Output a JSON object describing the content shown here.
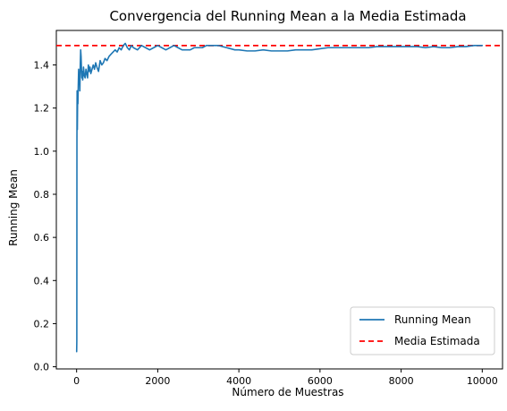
{
  "chart_data": {
    "type": "line",
    "title": "Convergencia del Running Mean a la Media Estimada",
    "xlabel": "Número de Muestras",
    "ylabel": "Running Mean",
    "xlim": [
      -500,
      10500
    ],
    "ylim": [
      -0.01,
      1.56
    ],
    "xticks": [
      0,
      2000,
      4000,
      6000,
      8000,
      10000
    ],
    "yticks": [
      0.0,
      0.2,
      0.4,
      0.6,
      0.8,
      1.0,
      1.2,
      1.4
    ],
    "xtick_labels": [
      "0",
      "2000",
      "4000",
      "6000",
      "8000",
      "10000"
    ],
    "ytick_labels": [
      "0.0",
      "0.2",
      "0.4",
      "0.6",
      "0.8",
      "1.0",
      "1.2",
      "1.4"
    ],
    "grid": false,
    "legend_position": "lower-right",
    "series": [
      {
        "name": "Running Mean",
        "color": "#1f77b4",
        "style": "solid",
        "x": [
          1,
          5,
          8,
          12,
          18,
          25,
          32,
          40,
          50,
          60,
          70,
          80,
          90,
          100,
          110,
          120,
          130,
          140,
          150,
          170,
          190,
          210,
          230,
          250,
          270,
          290,
          310,
          330,
          350,
          380,
          410,
          440,
          470,
          500,
          540,
          580,
          620,
          660,
          700,
          750,
          800,
          850,
          900,
          950,
          1000,
          1050,
          1100,
          1150,
          1200,
          1250,
          1300,
          1350,
          1400,
          1500,
          1600,
          1700,
          1800,
          1900,
          2000,
          2100,
          2200,
          2300,
          2400,
          2500,
          2600,
          2700,
          2800,
          2900,
          3000,
          3100,
          3200,
          3300,
          3400,
          3500,
          3600,
          3700,
          3800,
          3900,
          4000,
          4200,
          4400,
          4600,
          4800,
          5000,
          5200,
          5400,
          5600,
          5800,
          6000,
          6200,
          6400,
          6600,
          6800,
          7000,
          7200,
          7400,
          7600,
          7800,
          8000,
          8200,
          8400,
          8600,
          8800,
          9000,
          9200,
          9400,
          9600,
          9800,
          10000
        ],
        "values": [
          0.07,
          0.12,
          1.05,
          1.28,
          1.1,
          1.25,
          1.22,
          1.3,
          1.38,
          1.32,
          1.36,
          1.28,
          1.4,
          1.47,
          1.44,
          1.38,
          1.34,
          1.37,
          1.33,
          1.39,
          1.35,
          1.34,
          1.38,
          1.36,
          1.34,
          1.4,
          1.37,
          1.39,
          1.36,
          1.38,
          1.4,
          1.38,
          1.41,
          1.39,
          1.37,
          1.42,
          1.4,
          1.41,
          1.43,
          1.42,
          1.44,
          1.45,
          1.46,
          1.47,
          1.46,
          1.48,
          1.47,
          1.49,
          1.5,
          1.48,
          1.47,
          1.49,
          1.48,
          1.47,
          1.49,
          1.48,
          1.47,
          1.48,
          1.49,
          1.48,
          1.47,
          1.48,
          1.49,
          1.48,
          1.47,
          1.47,
          1.47,
          1.48,
          1.48,
          1.48,
          1.49,
          1.49,
          1.49,
          1.49,
          1.485,
          1.48,
          1.475,
          1.47,
          1.47,
          1.465,
          1.465,
          1.47,
          1.465,
          1.465,
          1.465,
          1.47,
          1.47,
          1.47,
          1.475,
          1.48,
          1.48,
          1.48,
          1.48,
          1.48,
          1.48,
          1.485,
          1.485,
          1.485,
          1.485,
          1.485,
          1.485,
          1.48,
          1.485,
          1.48,
          1.48,
          1.485,
          1.485,
          1.49,
          1.49
        ]
      },
      {
        "name": "Media Estimada",
        "color": "#ff0000",
        "style": "dashed",
        "type": "hline",
        "y": 1.49
      }
    ]
  }
}
